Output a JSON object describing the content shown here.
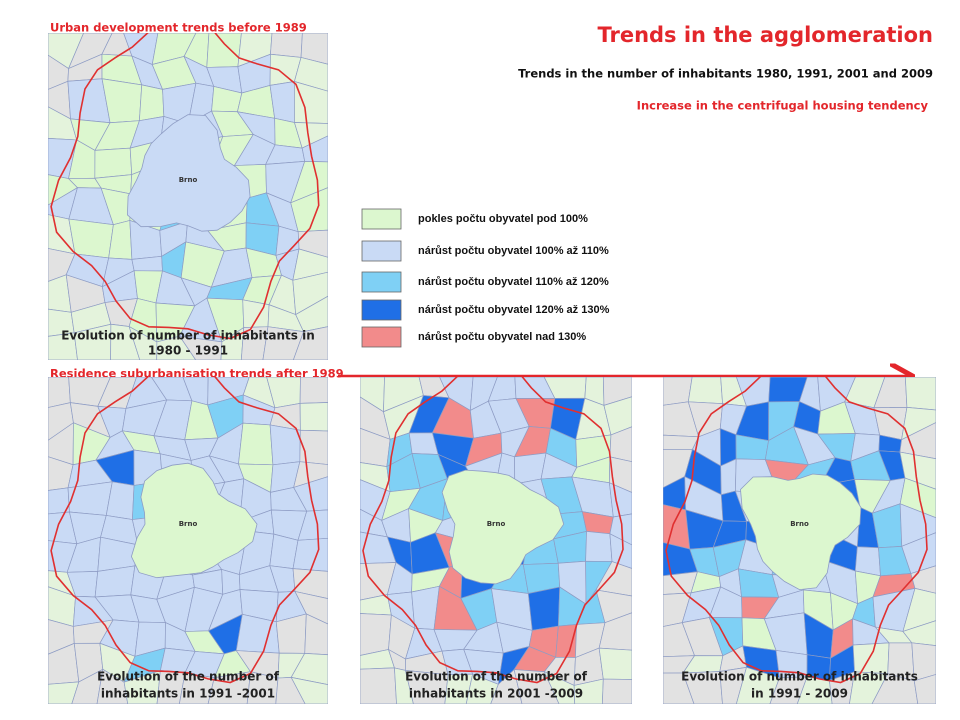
{
  "header": {
    "title": "Trends in the agglomeration",
    "subtitle": "Trends in the number of inhabitants 1980, 1991, 2001 and 2009",
    "highlight": "Increase in the centrifugal housing tendency"
  },
  "sections": {
    "before": "Urban development trends before 1989",
    "after": "Residence suburbanisation trends after 1989"
  },
  "maps": [
    {
      "city": "Brno",
      "caption": [
        "Evolution of number of inhabitants in",
        "1980 - 1991"
      ]
    },
    {
      "city": "Brno",
      "caption": [
        "Evolution of the number of",
        "inhabitants in 1991 -2001"
      ]
    },
    {
      "city": "Brno",
      "caption": [
        "Evolution of the number of",
        "inhabitants in 2001 -2009"
      ]
    },
    {
      "city": "Brno",
      "caption": [
        "Evolution of number of inhabitants",
        "in 1991 - 2009"
      ]
    }
  ],
  "legend": {
    "items": [
      "pokles počtu obyvatel pod 100%",
      "nárůst počtu obyvatel  100% až 110%",
      "nárůst počtu obyvatel  110% až 120%",
      "nárůst počtu obyvatel  120% až 130%",
      "nárůst počtu obyvatel  nad 130%"
    ]
  }
}
